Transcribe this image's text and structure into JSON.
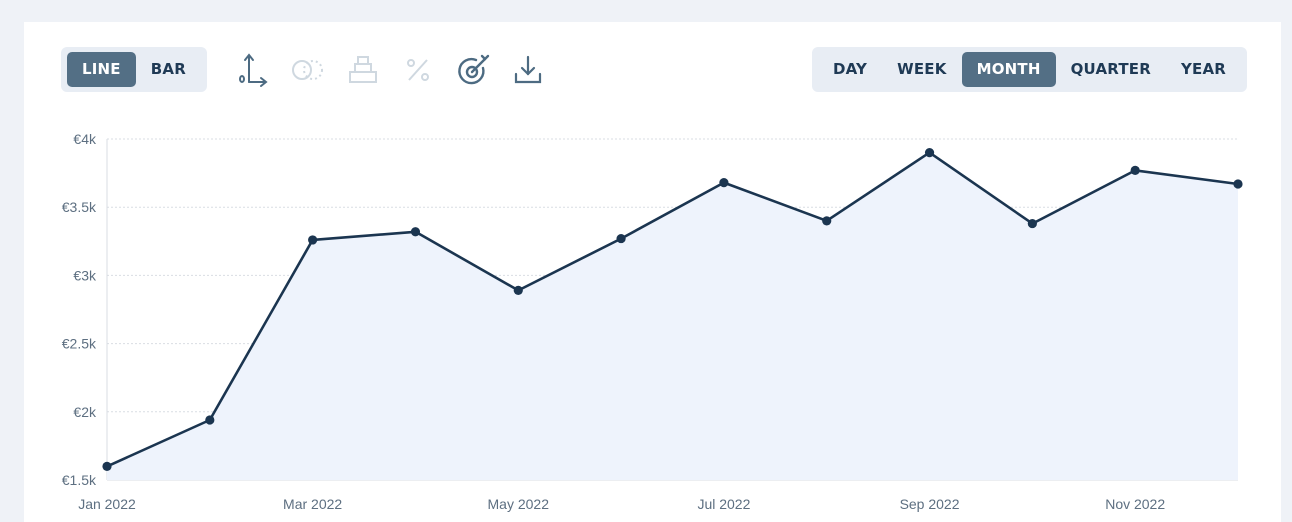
{
  "chart_type_toggle": {
    "options": [
      {
        "label": "LINE",
        "active": true
      },
      {
        "label": "BAR",
        "active": false
      }
    ]
  },
  "toolbar": {
    "icons": [
      "axis-icon",
      "compare-icon",
      "stack-icon",
      "percent-icon",
      "target-icon",
      "download-icon"
    ],
    "enabled": [
      true,
      false,
      false,
      false,
      true,
      true
    ]
  },
  "period_toggle": {
    "options": [
      {
        "label": "DAY",
        "active": false
      },
      {
        "label": "WEEK",
        "active": false
      },
      {
        "label": "MONTH",
        "active": true
      },
      {
        "label": "QUARTER",
        "active": false
      },
      {
        "label": "YEAR",
        "active": false
      }
    ]
  },
  "colors": {
    "line": "#1b3550",
    "area": "#eef3fc",
    "grid": "#d9dde3",
    "active_toggle": "#536f85",
    "icon": "#4d6b82",
    "icon_disabled": "#cfd8e0"
  },
  "chart_data": {
    "type": "area",
    "x": [
      "Jan 2022",
      "Feb 2022",
      "Mar 2022",
      "Apr 2022",
      "May 2022",
      "Jun 2022",
      "Jul 2022",
      "Aug 2022",
      "Sep 2022",
      "Oct 2022",
      "Nov 2022",
      "Dec 2022"
    ],
    "x_tick_labels": [
      "Jan 2022",
      "",
      "Mar 2022",
      "",
      "May 2022",
      "",
      "Jul 2022",
      "",
      "Sep 2022",
      "",
      "Nov 2022",
      ""
    ],
    "series": [
      {
        "values": [
          1600,
          1940,
          3260,
          3320,
          2890,
          3270,
          3680,
          3400,
          3900,
          3380,
          3770,
          3670
        ]
      }
    ],
    "ylim": [
      1500,
      4000
    ],
    "y_ticks": [
      1500,
      2000,
      2500,
      3000,
      3500,
      4000
    ],
    "y_tick_labels": [
      "€1.5k",
      "€2k",
      "€2.5k",
      "€3k",
      "€3.5k",
      "€4k"
    ],
    "grid": true,
    "legend": "none",
    "title": "",
    "xlabel": "",
    "ylabel": ""
  }
}
